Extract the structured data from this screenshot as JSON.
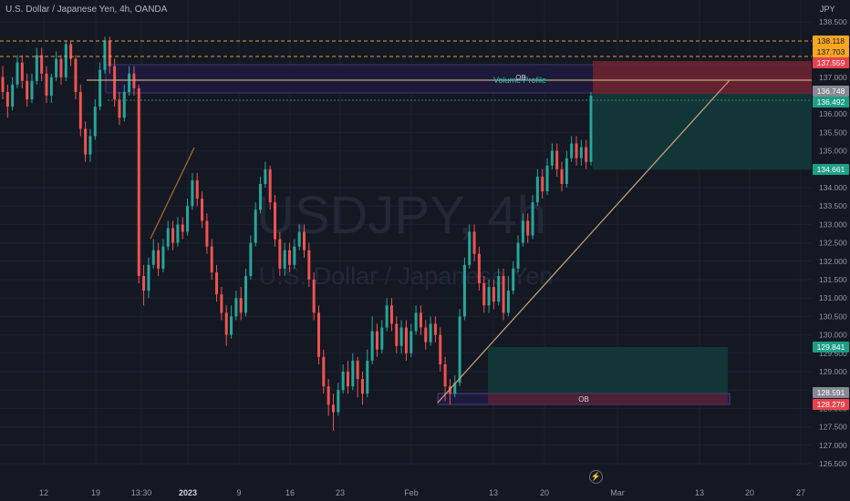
{
  "header": {
    "title": "U.S. Dollar / Japanese Yen, 4h, OANDA",
    "unit": "JPY"
  },
  "watermark": {
    "symbol": "USDJPY, 4h",
    "description": "U.S. Dollar / Japanese Yen"
  },
  "icons": {
    "event": "lightning-icon"
  },
  "colors": {
    "background": "#141823",
    "up": "#26a69a",
    "down": "#ef5350",
    "zone_green": "#123a3a",
    "zone_red": "#6b2430",
    "ob_fill": "#1e1a3e",
    "ob_border": "#4a3f8a",
    "trendline": "#c9a27a",
    "dashed_orange": "#d9a030",
    "dotted_green": "#2e8a6a"
  },
  "chart_data": {
    "type": "candlestick",
    "price_axis": {
      "min": 126.5,
      "max": 139.0,
      "ticks": [
        "138.500",
        "137.000",
        "136.000",
        "135.500",
        "135.000",
        "134.500",
        "134.000",
        "133.500",
        "133.000",
        "132.500",
        "132.000",
        "131.500",
        "131.000",
        "130.500",
        "130.000",
        "129.500",
        "129.000",
        "128.500",
        "128.000",
        "127.500",
        "127.000",
        "126.500"
      ]
    },
    "time_axis": {
      "labels": [
        "12",
        "19",
        "13:30",
        "2023",
        "9",
        "16",
        "23",
        "Feb",
        "13",
        "20",
        "Mar",
        "13",
        "20",
        "27"
      ]
    },
    "price_labels": [
      {
        "value": "138.118",
        "kind": "orange"
      },
      {
        "value": "137.703",
        "kind": "orange"
      },
      {
        "value": "137.559",
        "kind": "red"
      },
      {
        "value": "136.748",
        "kind": "gray"
      },
      {
        "value": "136.492",
        "kind": "green"
      },
      {
        "value": "134.661",
        "kind": "green"
      },
      {
        "value": "129.841",
        "kind": "green"
      },
      {
        "value": "128.591",
        "kind": "gray"
      },
      {
        "value": "128.279",
        "kind": "red"
      }
    ],
    "annotations": {
      "volume_profile_label": "Volume Profile",
      "ob_label": "OB",
      "ob_label_bottom": "OB"
    },
    "candles": [
      [
        137.0,
        136.6,
        137.3,
        136.4
      ],
      [
        136.6,
        136.2,
        136.8,
        135.9
      ],
      [
        136.2,
        136.8,
        137.0,
        136.1
      ],
      [
        136.8,
        137.4,
        137.6,
        136.7
      ],
      [
        137.4,
        136.9,
        137.6,
        136.7
      ],
      [
        136.9,
        136.4,
        137.1,
        136.2
      ],
      [
        136.4,
        136.9,
        137.1,
        136.3
      ],
      [
        136.9,
        137.6,
        137.8,
        136.8
      ],
      [
        137.6,
        137.1,
        137.8,
        136.9
      ],
      [
        137.1,
        136.5,
        137.3,
        136.3
      ],
      [
        136.5,
        137.0,
        137.1,
        136.3
      ],
      [
        137.0,
        137.5,
        137.7,
        136.9
      ],
      [
        137.5,
        137.0,
        137.6,
        136.8
      ],
      [
        137.0,
        137.9,
        138.0,
        136.9
      ],
      [
        137.9,
        137.5,
        138.0,
        137.3
      ],
      [
        137.5,
        136.6,
        137.6,
        136.4
      ],
      [
        136.6,
        135.6,
        136.8,
        135.4
      ],
      [
        135.6,
        134.9,
        135.8,
        134.7
      ],
      [
        134.9,
        135.4,
        135.6,
        134.7
      ],
      [
        135.4,
        136.2,
        136.4,
        135.3
      ],
      [
        136.2,
        137.2,
        137.4,
        136.1
      ],
      [
        137.2,
        138.0,
        138.1,
        137.1
      ],
      [
        138.0,
        137.3,
        138.1,
        137.1
      ],
      [
        137.3,
        136.4,
        137.5,
        136.2
      ],
      [
        136.4,
        135.9,
        136.6,
        135.7
      ],
      [
        135.9,
        136.6,
        136.8,
        135.8
      ],
      [
        136.6,
        137.1,
        137.3,
        136.5
      ],
      [
        137.1,
        136.7,
        137.3,
        136.5
      ],
      [
        136.7,
        131.6,
        136.8,
        131.4
      ],
      [
        131.6,
        131.2,
        131.9,
        130.8
      ],
      [
        131.2,
        131.9,
        132.1,
        131.0
      ],
      [
        131.9,
        132.3,
        132.6,
        131.8
      ],
      [
        132.3,
        131.8,
        132.5,
        131.6
      ],
      [
        131.8,
        132.4,
        132.6,
        131.7
      ],
      [
        132.4,
        132.9,
        133.1,
        132.3
      ],
      [
        132.9,
        132.5,
        133.1,
        132.3
      ],
      [
        132.5,
        133.0,
        133.2,
        132.4
      ],
      [
        133.0,
        132.8,
        133.2,
        132.6
      ],
      [
        132.8,
        133.5,
        133.7,
        132.7
      ],
      [
        133.5,
        134.2,
        134.4,
        133.4
      ],
      [
        134.2,
        133.7,
        134.4,
        133.5
      ],
      [
        133.7,
        133.1,
        133.9,
        132.9
      ],
      [
        133.1,
        132.4,
        133.3,
        132.2
      ],
      [
        132.4,
        131.7,
        132.6,
        131.5
      ],
      [
        131.7,
        131.1,
        131.9,
        130.9
      ],
      [
        131.1,
        130.6,
        131.3,
        130.4
      ],
      [
        130.6,
        130.0,
        130.8,
        129.7
      ],
      [
        130.0,
        130.5,
        130.8,
        129.9
      ],
      [
        130.5,
        131.0,
        131.2,
        130.4
      ],
      [
        131.0,
        130.6,
        131.3,
        130.4
      ],
      [
        130.6,
        131.6,
        131.8,
        130.5
      ],
      [
        131.6,
        132.5,
        132.7,
        131.5
      ],
      [
        132.5,
        133.4,
        133.6,
        132.4
      ],
      [
        133.4,
        134.1,
        134.3,
        133.3
      ],
      [
        134.1,
        134.5,
        134.7,
        134.0
      ],
      [
        134.5,
        133.6,
        134.6,
        133.4
      ],
      [
        133.6,
        132.6,
        133.8,
        132.4
      ],
      [
        132.6,
        131.8,
        132.8,
        131.6
      ],
      [
        131.8,
        132.3,
        132.5,
        131.6
      ],
      [
        132.3,
        131.9,
        132.5,
        131.7
      ],
      [
        131.9,
        132.4,
        132.6,
        131.8
      ],
      [
        132.4,
        132.8,
        133.0,
        132.3
      ],
      [
        132.8,
        132.3,
        133.0,
        132.1
      ],
      [
        132.3,
        131.5,
        132.5,
        131.3
      ],
      [
        131.5,
        130.6,
        131.7,
        130.4
      ],
      [
        130.6,
        129.4,
        130.8,
        129.2
      ],
      [
        129.4,
        128.6,
        129.6,
        128.4
      ],
      [
        128.6,
        128.1,
        128.8,
        127.8
      ],
      [
        128.1,
        127.9,
        128.4,
        127.4
      ],
      [
        127.9,
        128.5,
        128.7,
        127.8
      ],
      [
        128.5,
        129.0,
        129.2,
        128.4
      ],
      [
        129.0,
        128.6,
        129.3,
        128.4
      ],
      [
        128.6,
        129.3,
        129.5,
        128.5
      ],
      [
        129.3,
        128.8,
        129.4,
        128.3
      ],
      [
        128.8,
        128.4,
        129.0,
        128.1
      ],
      [
        128.4,
        129.3,
        129.6,
        128.3
      ],
      [
        129.3,
        130.1,
        130.5,
        129.2
      ],
      [
        130.1,
        129.6,
        130.3,
        129.4
      ],
      [
        129.6,
        130.2,
        130.4,
        129.5
      ],
      [
        130.2,
        130.8,
        131.0,
        130.1
      ],
      [
        130.8,
        130.3,
        131.0,
        130.1
      ],
      [
        130.3,
        129.7,
        130.5,
        129.5
      ],
      [
        129.7,
        130.2,
        130.4,
        129.5
      ],
      [
        130.2,
        129.5,
        130.4,
        129.3
      ],
      [
        129.5,
        130.1,
        130.3,
        129.4
      ],
      [
        130.1,
        130.6,
        130.8,
        130.0
      ],
      [
        130.6,
        130.2,
        130.8,
        130.0
      ],
      [
        130.2,
        129.8,
        130.4,
        129.6
      ],
      [
        129.8,
        130.3,
        130.5,
        129.7
      ],
      [
        130.3,
        130.0,
        130.5,
        129.8
      ],
      [
        130.0,
        129.2,
        130.2,
        129.0
      ],
      [
        129.2,
        128.6,
        129.4,
        128.2
      ],
      [
        128.6,
        128.4,
        128.8,
        128.1
      ],
      [
        128.4,
        128.7,
        128.9,
        128.3
      ],
      [
        128.7,
        130.5,
        130.7,
        128.6
      ],
      [
        130.5,
        131.9,
        132.1,
        130.4
      ],
      [
        131.9,
        132.8,
        133.0,
        131.8
      ],
      [
        132.8,
        132.2,
        133.0,
        132.0
      ],
      [
        132.2,
        131.4,
        132.4,
        131.2
      ],
      [
        131.4,
        130.8,
        131.6,
        130.6
      ],
      [
        130.8,
        131.3,
        131.5,
        130.6
      ],
      [
        131.3,
        130.9,
        131.5,
        130.7
      ],
      [
        130.9,
        131.6,
        131.8,
        130.8
      ],
      [
        131.6,
        130.6,
        131.8,
        130.4
      ],
      [
        130.6,
        131.2,
        131.6,
        130.5
      ],
      [
        131.2,
        131.8,
        132.0,
        131.1
      ],
      [
        131.8,
        132.5,
        132.7,
        131.7
      ],
      [
        132.5,
        133.1,
        133.3,
        132.4
      ],
      [
        133.1,
        132.7,
        133.3,
        132.5
      ],
      [
        132.7,
        133.6,
        133.8,
        132.6
      ],
      [
        133.6,
        134.3,
        134.5,
        133.5
      ],
      [
        134.3,
        133.9,
        134.5,
        133.7
      ],
      [
        133.9,
        134.6,
        134.8,
        133.8
      ],
      [
        134.6,
        135.0,
        135.2,
        134.5
      ],
      [
        135.0,
        134.5,
        135.2,
        134.3
      ],
      [
        134.5,
        134.1,
        134.7,
        133.9
      ],
      [
        134.1,
        134.8,
        135.0,
        134.0
      ],
      [
        134.8,
        135.2,
        135.4,
        134.7
      ],
      [
        135.2,
        134.8,
        135.4,
        134.6
      ],
      [
        134.8,
        135.1,
        135.3,
        134.6
      ],
      [
        135.1,
        134.7,
        135.3,
        134.5
      ],
      [
        134.7,
        136.5,
        136.6,
        134.6
      ]
    ]
  }
}
